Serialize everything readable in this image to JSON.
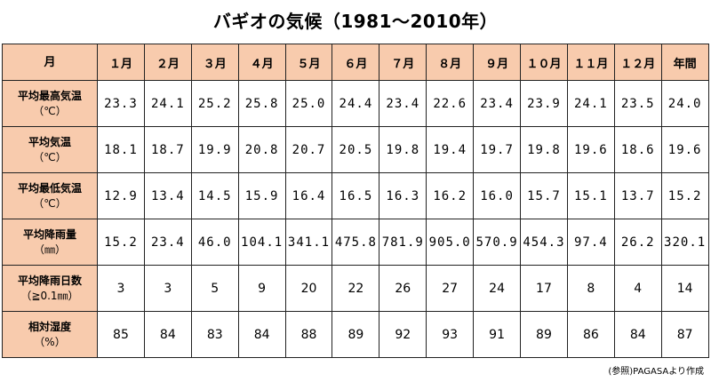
{
  "title": "バギオの気候（1981〜2010年）",
  "header": {
    "corner": "月",
    "months": [
      "１月",
      "２月",
      "３月",
      "４月",
      "５月",
      "６月",
      "７月",
      "８月",
      "９月",
      "１０月",
      "１１月",
      "１２月",
      "年間"
    ]
  },
  "rows": [
    {
      "label": "平均最高気温",
      "unit": "（℃）",
      "values": [
        "23.3",
        "24.1",
        "25.2",
        "25.8",
        "25.0",
        "24.4",
        "23.4",
        "22.6",
        "23.4",
        "23.9",
        "24.1",
        "23.5",
        "24.0"
      ]
    },
    {
      "label": "平均気温",
      "unit": "（℃）",
      "values": [
        "18.1",
        "18.7",
        "19.9",
        "20.8",
        "20.7",
        "20.5",
        "19.8",
        "19.4",
        "19.7",
        "19.8",
        "19.6",
        "18.6",
        "19.6"
      ]
    },
    {
      "label": "平均最低気温",
      "unit": "（℃）",
      "values": [
        "12.9",
        "13.4",
        "14.5",
        "15.9",
        "16.4",
        "16.5",
        "16.3",
        "16.2",
        "16.0",
        "15.7",
        "15.1",
        "13.7",
        "15.2"
      ]
    },
    {
      "label": "平均降雨量",
      "unit": "（㎜）",
      "values": [
        "15.2",
        "23.4",
        "46.0",
        "104.1",
        "341.1",
        "475.8",
        "781.9",
        "905.0",
        "570.9",
        "454.3",
        "97.4",
        "26.2",
        "320.1"
      ]
    },
    {
      "label": "平均降雨日数",
      "unit": "（≧0.1㎜）",
      "values": [
        "3",
        "3",
        "5",
        "9",
        "20",
        "22",
        "26",
        "27",
        "24",
        "17",
        "8",
        "4",
        "14"
      ]
    },
    {
      "label": "相対湿度",
      "unit": "（%）",
      "values": [
        "85",
        "84",
        "83",
        "84",
        "88",
        "89",
        "92",
        "93",
        "91",
        "89",
        "86",
        "84",
        "87"
      ]
    }
  ],
  "source": "(参照)PAGASAより作成"
}
